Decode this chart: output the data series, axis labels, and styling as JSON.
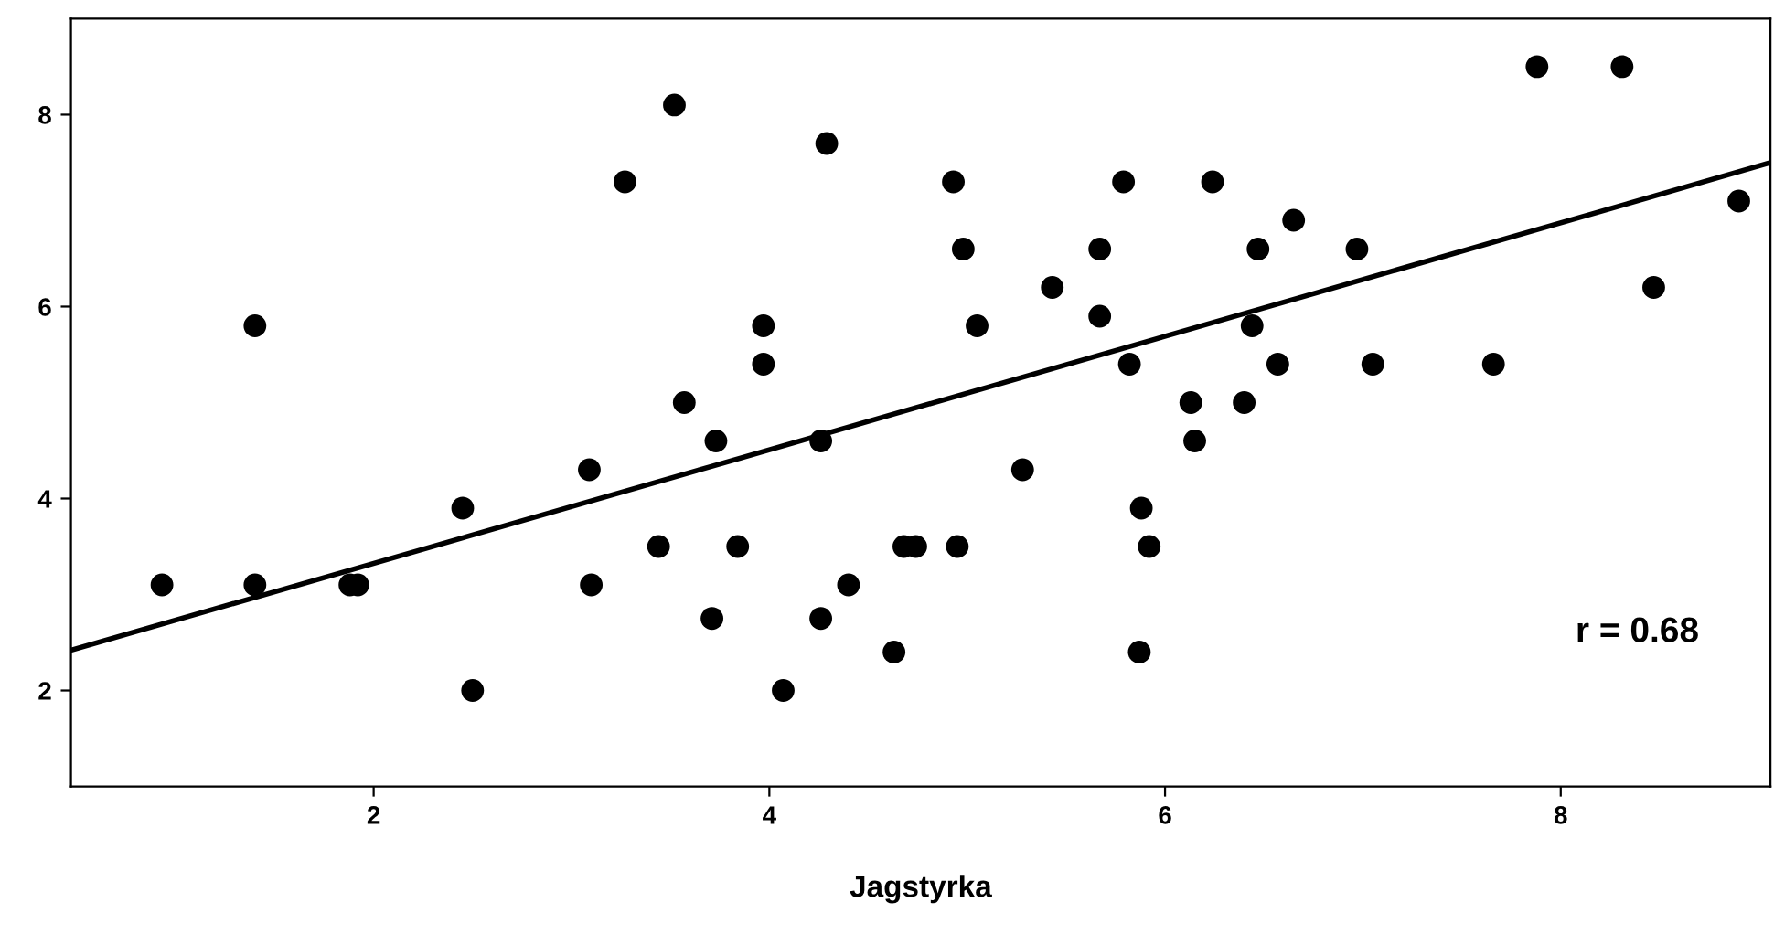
{
  "chart_data": {
    "type": "scatter",
    "xlabel": "Jagstyrka",
    "annotations": [
      "r = 0.68"
    ],
    "xlim": [
      0.47,
      9.06
    ],
    "ylim": [
      1.0,
      9.0
    ],
    "xticks": [
      2,
      4,
      6,
      8
    ],
    "yticks": [
      2,
      4,
      6,
      8
    ],
    "grid": false,
    "series": [
      {
        "marker": "circle",
        "color": "#000000",
        "x": [
          0.93,
          1.4,
          1.4,
          1.88,
          1.92,
          2.45,
          2.5,
          3.09,
          3.1,
          3.27,
          3.44,
          3.52,
          3.57,
          3.73,
          3.84,
          3.71,
          3.97,
          3.97,
          4.07,
          4.26,
          4.26,
          4.29,
          4.4,
          4.63,
          4.68,
          4.74,
          4.93,
          4.95,
          4.98,
          5.05,
          5.28,
          5.43,
          5.67,
          5.67,
          5.79,
          5.82,
          5.88,
          5.87,
          5.92,
          6.13,
          6.15,
          6.24,
          6.4,
          6.44,
          6.47,
          6.57,
          6.65,
          6.97,
          7.05,
          7.66,
          7.88,
          8.31,
          8.47,
          8.9
        ],
        "values": [
          3.1,
          5.8,
          3.1,
          3.1,
          3.1,
          3.9,
          2.0,
          4.3,
          3.1,
          7.3,
          3.5,
          8.1,
          5.0,
          4.6,
          3.5,
          2.75,
          5.8,
          5.4,
          2.0,
          2.75,
          4.6,
          7.7,
          3.1,
          2.4,
          3.5,
          3.5,
          7.3,
          3.5,
          6.6,
          5.8,
          4.3,
          6.2,
          6.6,
          5.9,
          7.3,
          5.4,
          3.9,
          2.4,
          3.5,
          5.0,
          4.6,
          7.3,
          5.0,
          5.8,
          6.6,
          5.4,
          6.9,
          6.6,
          5.4,
          5.4,
          8.5,
          8.5,
          6.2,
          7.1
        ]
      },
      {
        "type": "line",
        "marker": "none",
        "color": "#000000",
        "x": [
          0.47,
          9.06
        ],
        "values": [
          2.42,
          7.5
        ]
      }
    ]
  }
}
